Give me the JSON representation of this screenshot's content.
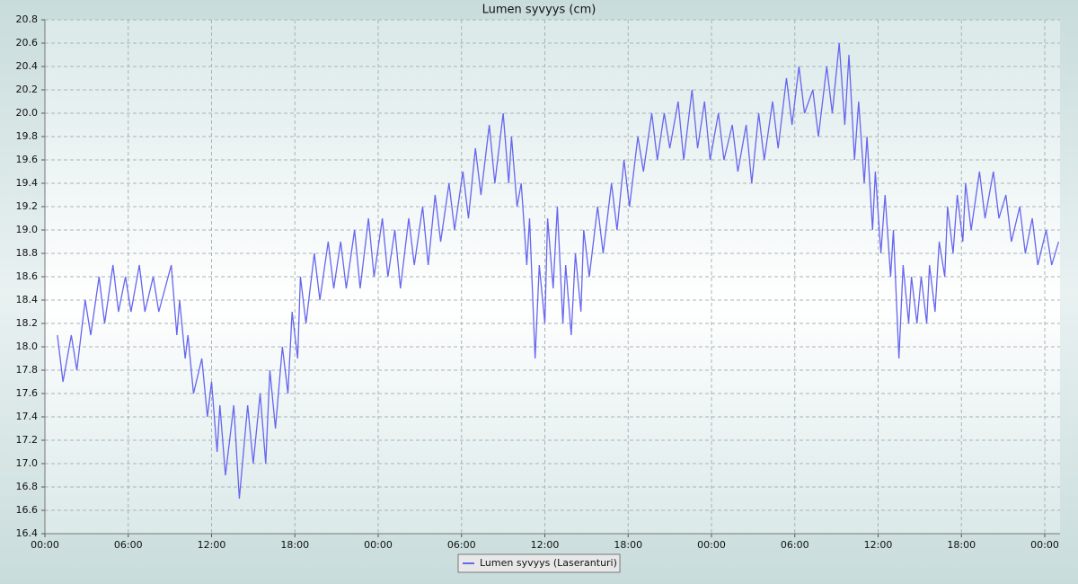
{
  "chart_data": {
    "type": "line",
    "title": "Lumen syvyys (cm)",
    "x": [
      0.9,
      1.3,
      1.9,
      2.3,
      2.9,
      3.3,
      3.9,
      4.3,
      4.9,
      5.3,
      5.8,
      6.2,
      6.8,
      7.2,
      7.8,
      8.2,
      9.1,
      9.5,
      9.7,
      10.1,
      10.3,
      10.7,
      11.3,
      11.7,
      12.0,
      12.4,
      12.6,
      13.0,
      13.6,
      14.0,
      14.6,
      15.0,
      15.5,
      15.9,
      16.2,
      16.6,
      17.1,
      17.5,
      17.8,
      18.2,
      18.4,
      18.8,
      19.4,
      19.8,
      20.4,
      20.8,
      21.3,
      21.7,
      22.3,
      22.7,
      23.3,
      23.7,
      24.3,
      24.7,
      25.2,
      25.6,
      26.2,
      26.6,
      27.2,
      27.6,
      28.1,
      28.5,
      29.1,
      29.5,
      30.1,
      30.5,
      31.0,
      31.4,
      32.0,
      32.4,
      33.0,
      33.4,
      33.6,
      34.0,
      34.3,
      34.7,
      34.9,
      35.3,
      35.6,
      36.0,
      36.2,
      36.6,
      36.9,
      37.3,
      37.5,
      37.9,
      38.2,
      38.6,
      38.8,
      39.2,
      39.8,
      40.2,
      40.8,
      41.2,
      41.7,
      42.1,
      42.7,
      43.1,
      43.7,
      44.1,
      44.6,
      45.0,
      45.6,
      46.0,
      46.6,
      47.0,
      47.5,
      47.9,
      48.5,
      48.9,
      49.5,
      49.9,
      50.5,
      50.9,
      51.4,
      51.8,
      52.4,
      52.8,
      53.4,
      53.8,
      54.3,
      54.7,
      55.3,
      55.7,
      56.3,
      56.7,
      57.2,
      57.6,
      57.9,
      58.3,
      58.6,
      59.0,
      59.2,
      59.6,
      59.8,
      60.2,
      60.5,
      60.9,
      61.1,
      61.5,
      61.8,
      62.2,
      62.4,
      62.8,
      63.1,
      63.5,
      63.7,
      64.1,
      64.4,
      64.8,
      65.0,
      65.4,
      65.7,
      66.1,
      66.3,
      66.7,
      67.3,
      67.7,
      68.3,
      68.7,
      69.2,
      69.6,
      70.2,
      70.6,
      71.1,
      71.5,
      72.1,
      72.5,
      73.0
    ],
    "series": [
      {
        "name": "Lumen syvyys (Laseranturi)",
        "color": "#6666ee",
        "values": [
          18.1,
          17.7,
          18.1,
          17.8,
          18.4,
          18.1,
          18.6,
          18.2,
          18.7,
          18.3,
          18.6,
          18.3,
          18.7,
          18.3,
          18.6,
          18.3,
          18.7,
          18.1,
          18.4,
          17.9,
          18.1,
          17.6,
          17.9,
          17.4,
          17.7,
          17.1,
          17.5,
          16.9,
          17.5,
          16.7,
          17.5,
          17.0,
          17.6,
          17.0,
          17.8,
          17.3,
          18.0,
          17.6,
          18.3,
          17.9,
          18.6,
          18.2,
          18.8,
          18.4,
          18.9,
          18.5,
          18.9,
          18.5,
          19.0,
          18.5,
          19.1,
          18.6,
          19.1,
          18.6,
          19.0,
          18.5,
          19.1,
          18.7,
          19.2,
          18.7,
          19.3,
          18.9,
          19.4,
          19.0,
          19.5,
          19.1,
          19.7,
          19.3,
          19.9,
          19.4,
          20.0,
          19.4,
          19.8,
          19.2,
          19.4,
          18.7,
          19.1,
          17.9,
          18.7,
          18.2,
          19.1,
          18.5,
          19.2,
          18.2,
          18.7,
          18.1,
          18.8,
          18.3,
          19.0,
          18.6,
          19.2,
          18.8,
          19.4,
          19.0,
          19.6,
          19.2,
          19.8,
          19.5,
          20.0,
          19.6,
          20.0,
          19.7,
          20.1,
          19.6,
          20.2,
          19.7,
          20.1,
          19.6,
          20.0,
          19.6,
          19.9,
          19.5,
          19.9,
          19.4,
          20.0,
          19.6,
          20.1,
          19.7,
          20.3,
          19.9,
          20.4,
          20.0,
          20.2,
          19.8,
          20.4,
          20.0,
          20.6,
          19.9,
          20.5,
          19.6,
          20.1,
          19.4,
          19.8,
          19.0,
          19.5,
          18.8,
          19.3,
          18.6,
          19.0,
          17.9,
          18.7,
          18.2,
          18.6,
          18.2,
          18.6,
          18.2,
          18.7,
          18.3,
          18.9,
          18.6,
          19.2,
          18.8,
          19.3,
          18.9,
          19.4,
          19.0,
          19.5,
          19.1,
          19.5,
          19.1,
          19.3,
          18.9,
          19.2,
          18.8,
          19.1,
          18.7,
          19.0,
          18.7,
          18.9
        ]
      }
    ],
    "xlim": [
      0,
      73.1
    ],
    "xticks": [
      {
        "value": 0,
        "label": "00:00"
      },
      {
        "value": 6,
        "label": "06:00"
      },
      {
        "value": 12,
        "label": "12:00"
      },
      {
        "value": 18,
        "label": "18:00"
      },
      {
        "value": 24,
        "label": "00:00"
      },
      {
        "value": 30,
        "label": "06:00"
      },
      {
        "value": 36,
        "label": "12:00"
      },
      {
        "value": 42,
        "label": "18:00"
      },
      {
        "value": 48,
        "label": "00:00"
      },
      {
        "value": 54,
        "label": "06:00"
      },
      {
        "value": 60,
        "label": "12:00"
      },
      {
        "value": 66,
        "label": "18:00"
      },
      {
        "value": 72,
        "label": "00:00"
      }
    ],
    "ylim": [
      16.4,
      20.8
    ],
    "yticks": [
      16.4,
      16.6,
      16.8,
      {
        "value": 17,
        "label": "17.0"
      },
      17.2,
      17.4,
      17.6,
      17.8,
      {
        "value": 18,
        "label": "18.0"
      },
      18.2,
      18.4,
      18.6,
      18.8,
      {
        "value": 19,
        "label": "19.0"
      },
      19.2,
      19.4,
      19.6,
      19.8,
      {
        "value": 20,
        "label": "20.0"
      },
      20.2,
      20.4,
      20.6,
      20.8
    ],
    "grid": true
  }
}
